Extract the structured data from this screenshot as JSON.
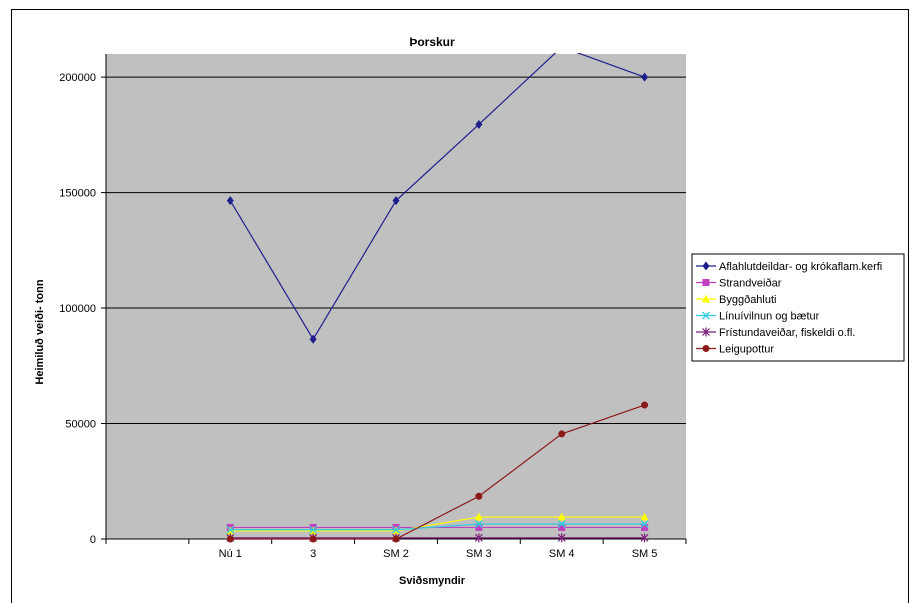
{
  "chart_data": {
    "type": "line",
    "title": "Þorskur",
    "xlabel": "Sviðsmyndir",
    "ylabel": "Heimiluð veiði- tonn",
    "categories": [
      "",
      "Nú 1",
      "3",
      "SM 2",
      "SM 3",
      "SM 4",
      "SM 5"
    ],
    "ylim": [
      0,
      210000
    ],
    "yticks": [
      0,
      50000,
      100000,
      150000,
      200000
    ],
    "grid": true,
    "plot_background": "#c0c0c0",
    "legend_position": "right",
    "series": [
      {
        "name": "Aflahlutdeildar- og krókaflam.kerfi",
        "color": "#1f1f8c",
        "marker": "diamond",
        "values": [
          null,
          146500,
          86500,
          146500,
          179500,
          213000,
          200000
        ]
      },
      {
        "name": "Strandveiðar",
        "color": "#c040c0",
        "marker": "square",
        "values": [
          null,
          5000,
          5000,
          5000,
          5000,
          5000,
          5000
        ]
      },
      {
        "name": "Byggðahluti",
        "color": "#ffff00",
        "marker": "triangle",
        "values": [
          null,
          3500,
          3500,
          3500,
          9500,
          9500,
          9500
        ]
      },
      {
        "name": "Línuívilnun og bætur",
        "color": "#33ccdd",
        "marker": "x",
        "values": [
          null,
          4000,
          4000,
          4000,
          6500,
          6500,
          6500
        ]
      },
      {
        "name": "Frístundaveiðar, fiskeldi o.fl.",
        "color": "#7a1f7a",
        "marker": "star",
        "values": [
          null,
          500,
          500,
          500,
          500,
          500,
          500
        ]
      },
      {
        "name": "Leigupottur",
        "color": "#8b1a1a",
        "marker": "circle",
        "values": [
          null,
          0,
          0,
          0,
          18500,
          45500,
          58000
        ]
      }
    ]
  }
}
